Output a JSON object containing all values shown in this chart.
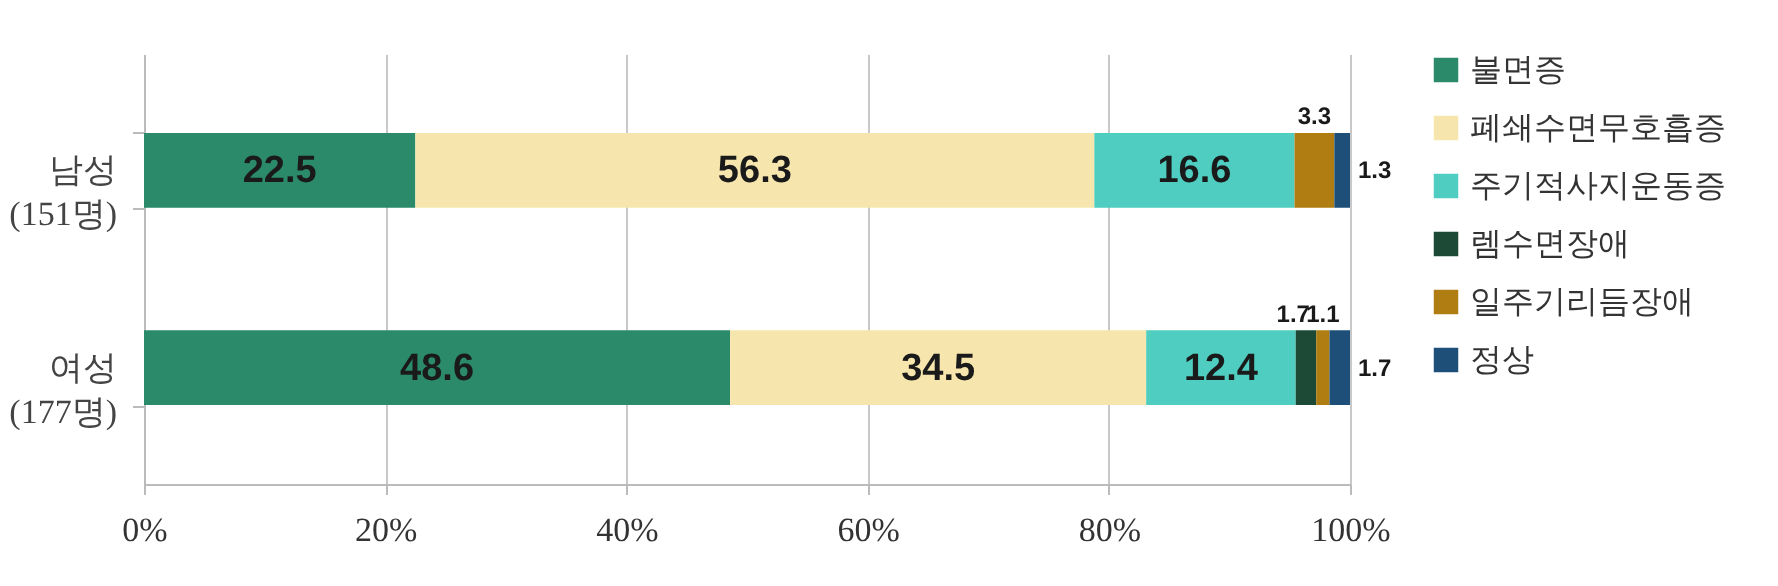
{
  "chart_data": {
    "type": "bar",
    "orientation": "horizontal",
    "stacked": true,
    "categories": [
      "남성\n(151명)",
      "여성\n(177명)"
    ],
    "series": [
      {
        "name": "불면증",
        "color": "#2b8a6a",
        "values": [
          22.5,
          48.6
        ],
        "value_labels": [
          "22.5",
          "48.6"
        ]
      },
      {
        "name": "폐쇄수면무호흡증",
        "color": "#f6e6ad",
        "values": [
          56.3,
          34.5
        ],
        "value_labels": [
          "56.3",
          "34.5"
        ]
      },
      {
        "name": "주기적사지운동증",
        "color": "#4fcdc0",
        "values": [
          16.6,
          12.4
        ],
        "value_labels": [
          "16.6",
          "12.4"
        ]
      },
      {
        "name": "렘수면장애",
        "color": "#1d4a36",
        "values": [
          0,
          1.7
        ],
        "value_labels": [
          null,
          "1.7"
        ]
      },
      {
        "name": "일주기리듬장애",
        "color": "#b07d12",
        "values": [
          3.3,
          1.1
        ],
        "value_labels": [
          "3.3",
          "1.1"
        ]
      },
      {
        "name": "정상",
        "color": "#1d4f78",
        "values": [
          1.3,
          1.7
        ],
        "value_labels": [
          "1.3",
          "1.7"
        ]
      }
    ],
    "xlim": [
      0,
      100
    ],
    "xticks": [
      {
        "value": 0,
        "label": "0%"
      },
      {
        "value": 20,
        "label": "20%"
      },
      {
        "value": 40,
        "label": "40%"
      },
      {
        "value": 60,
        "label": "60%"
      },
      {
        "value": 80,
        "label": "80%"
      },
      {
        "value": 100,
        "label": "100%"
      }
    ],
    "grid": "x",
    "legend": "right"
  }
}
